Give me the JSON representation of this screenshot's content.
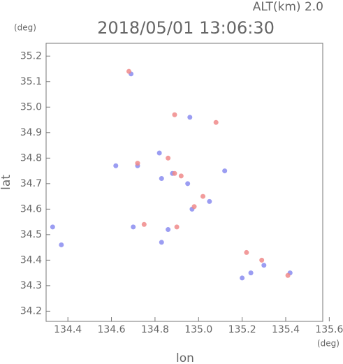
{
  "chart_data": {
    "type": "scatter",
    "title": "2018/05/01 13:06:30",
    "altitude_label": "ALT(km)  2.0",
    "y_unit": "(deg)",
    "x_unit": "(deg)",
    "x_label": "lon",
    "y_label": "lat",
    "xlim": [
      134.3,
      135.57
    ],
    "ylim": [
      34.16,
      35.25
    ],
    "xticks": [
      134.4,
      134.6,
      134.8,
      {
        "value": 135,
        "label": "135.0"
      },
      135.2,
      135.4,
      135.6
    ],
    "yticks": [
      34.2,
      34.3,
      34.4,
      34.5,
      34.6,
      34.7,
      34.8,
      34.9,
      {
        "value": 35,
        "label": "35.0"
      },
      35.1,
      35.2
    ],
    "series": [
      {
        "color": "#8a8cf0",
        "x": [
          134.33,
          134.37,
          134.69,
          134.62,
          134.72,
          134.82,
          134.83,
          134.88,
          134.95,
          134.97,
          134.86,
          134.83,
          135.05,
          135.12,
          135.2,
          135.24,
          135.3,
          135.42,
          134.96,
          134.7
        ],
        "y": [
          34.53,
          34.46,
          35.13,
          34.77,
          34.77,
          34.82,
          34.72,
          34.74,
          34.7,
          34.6,
          34.52,
          34.47,
          34.63,
          34.75,
          34.33,
          34.35,
          34.38,
          34.35,
          34.96,
          34.53
        ]
      },
      {
        "color": "#f08a8a",
        "x": [
          134.68,
          134.75,
          134.89,
          134.92,
          135.02,
          134.98,
          134.9,
          134.72,
          135.22,
          135.29,
          135.41,
          134.89,
          135.08,
          134.86
        ],
        "y": [
          35.14,
          34.54,
          34.74,
          34.73,
          34.65,
          34.61,
          34.53,
          34.78,
          34.43,
          34.4,
          34.34,
          34.97,
          34.94,
          34.8
        ]
      }
    ]
  }
}
